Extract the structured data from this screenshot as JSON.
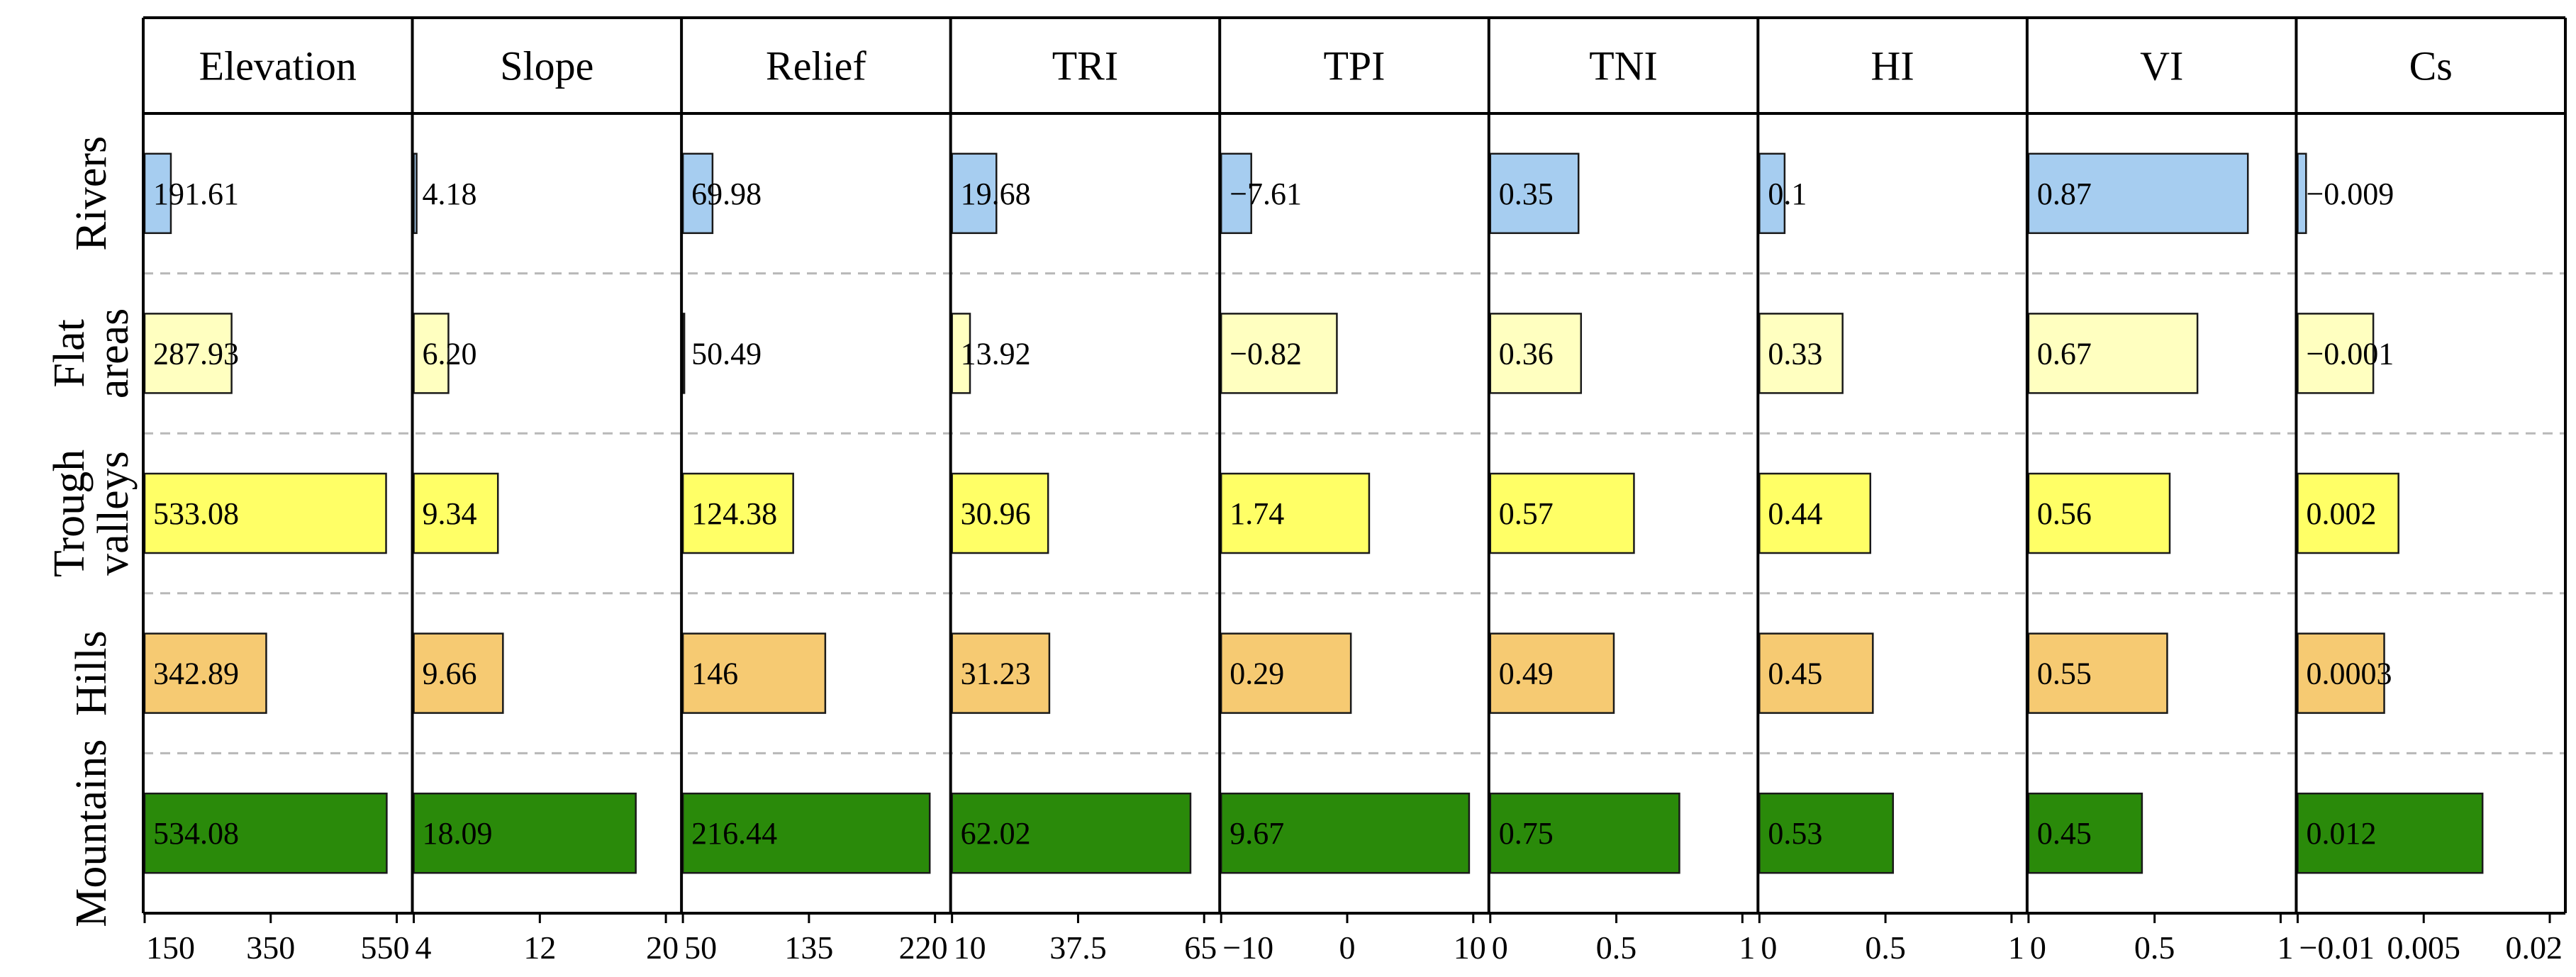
{
  "chart_data": {
    "type": "bar",
    "orientation": "horizontal",
    "panels": [
      {
        "name": "Elevation",
        "xlim": [
          150,
          550
        ],
        "ticks": [
          "150",
          "350",
          "550"
        ],
        "tick_values": [
          150,
          350,
          550
        ],
        "values": [
          191.61,
          287.93,
          533.08,
          342.89,
          534.08
        ],
        "labels": [
          "191.61",
          "287.93",
          "533.08",
          "342.89",
          "534.08"
        ]
      },
      {
        "name": "Slope",
        "xlim": [
          4,
          20
        ],
        "ticks": [
          "4",
          "12",
          "20"
        ],
        "tick_values": [
          4,
          12,
          20
        ],
        "values": [
          4.18,
          6.2,
          9.34,
          9.66,
          18.09
        ],
        "labels": [
          "4.18",
          "6.20",
          "9.34",
          "9.66",
          "18.09"
        ]
      },
      {
        "name": "Relief",
        "xlim": [
          50,
          220
        ],
        "ticks": [
          "50",
          "135",
          "220"
        ],
        "tick_values": [
          50,
          135,
          220
        ],
        "values": [
          69.98,
          50.49,
          124.38,
          146,
          216.44
        ],
        "labels": [
          "69.98",
          "50.49",
          "124.38",
          "146",
          "216.44"
        ]
      },
      {
        "name": "TRI",
        "xlim": [
          10,
          65
        ],
        "ticks": [
          "10",
          "37.5",
          "65"
        ],
        "tick_values": [
          10,
          37.5,
          65
        ],
        "values": [
          19.68,
          13.92,
          30.96,
          31.23,
          62.02
        ],
        "labels": [
          "19.68",
          "13.92",
          "30.96",
          "31.23",
          "62.02"
        ]
      },
      {
        "name": "TPI",
        "xlim": [
          -10,
          10
        ],
        "ticks": [
          "−10",
          "0",
          "10"
        ],
        "tick_values": [
          -10,
          0,
          10
        ],
        "values": [
          -7.61,
          -0.82,
          1.74,
          0.29,
          9.67
        ],
        "labels": [
          "−7.61",
          "−0.82",
          "1.74",
          "0.29",
          "9.67"
        ]
      },
      {
        "name": "TNI",
        "xlim": [
          0,
          1
        ],
        "ticks": [
          "0",
          "0.5",
          "1"
        ],
        "tick_values": [
          0,
          0.5,
          1
        ],
        "values": [
          0.35,
          0.36,
          0.57,
          0.49,
          0.75
        ],
        "labels": [
          "0.35",
          "0.36",
          "0.57",
          "0.49",
          "0.75"
        ]
      },
      {
        "name": "HI",
        "xlim": [
          0,
          1
        ],
        "ticks": [
          "0",
          "0.5",
          "1"
        ],
        "tick_values": [
          0,
          0.5,
          1
        ],
        "values": [
          0.1,
          0.33,
          0.44,
          0.45,
          0.53
        ],
        "labels": [
          "0.1",
          "0.33",
          "0.44",
          "0.45",
          "0.53"
        ]
      },
      {
        "name": "VI",
        "xlim": [
          0,
          1
        ],
        "ticks": [
          "0",
          "0.5",
          "1"
        ],
        "tick_values": [
          0,
          0.5,
          1
        ],
        "values": [
          0.87,
          0.67,
          0.56,
          0.55,
          0.45
        ],
        "labels": [
          "0.87",
          "0.67",
          "0.56",
          "0.55",
          "0.45"
        ]
      },
      {
        "name": "Cs",
        "xlim": [
          -0.01,
          0.02
        ],
        "ticks": [
          "−0.01",
          "0.005",
          "0.02"
        ],
        "tick_values": [
          -0.01,
          0.005,
          0.02
        ],
        "values": [
          -0.009,
          -0.001,
          0.002,
          0.0003,
          0.012
        ],
        "labels": [
          "−0.009",
          "−0.001",
          "0.002",
          "0.0003",
          "0.012"
        ]
      }
    ],
    "categories": [
      {
        "name": "Rivers",
        "lines": [
          "Rivers"
        ],
        "color": "#a6cdf0"
      },
      {
        "name": "Flat areas",
        "lines": [
          "Flat",
          "areas"
        ],
        "color": "#ffffc0"
      },
      {
        "name": "Trough valleys",
        "lines": [
          "Trough",
          "valleys"
        ],
        "color": "#ffff66"
      },
      {
        "name": "Hills",
        "lines": [
          "Hills"
        ],
        "color": "#f6ca72"
      },
      {
        "name": "Mountains",
        "lines": [
          "Mountains"
        ],
        "color": "#2a8a0a"
      }
    ],
    "grid": "dashed horizontal separators between rows",
    "title": "",
    "xlabel": "",
    "ylabel": ""
  }
}
